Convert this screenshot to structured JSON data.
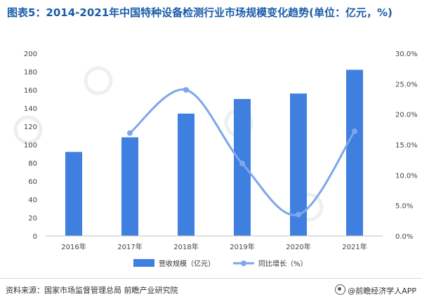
{
  "header": {
    "title": "图表5：2014-2021年中国特种设备检测行业市场规模变化趋势(单位：亿元，%)"
  },
  "chart_data": {
    "type": "bar",
    "categories": [
      "2016年",
      "2017年",
      "2018年",
      "2019年",
      "2020年",
      "2021年"
    ],
    "series": [
      {
        "name": "营收规模（亿元）",
        "type": "bar",
        "axis": "left",
        "color": "#3f7fe0",
        "values": [
          92,
          108,
          134,
          150,
          156,
          182
        ]
      },
      {
        "name": "同比增长（%）",
        "type": "line",
        "axis": "right",
        "color": "#7da7ea",
        "values": [
          null,
          16.9,
          24.0,
          11.9,
          3.5,
          17.2
        ]
      }
    ],
    "y_left": {
      "min": 0,
      "max": 200,
      "step": 20,
      "ticks": [
        "0",
        "20",
        "40",
        "60",
        "80",
        "100",
        "120",
        "140",
        "160",
        "180",
        "200"
      ]
    },
    "y_right": {
      "min": 0,
      "max": 30,
      "step": 5,
      "ticks": [
        "0.0%",
        "5.0%",
        "10.0%",
        "15.0%",
        "20.0%",
        "25.0%",
        "30.0%"
      ]
    },
    "legend_position": "bottom"
  },
  "footer": {
    "source": "资料来源：国家市场监督管理总局 前瞻产业研究院",
    "brand": "@前瞻经济学人APP"
  }
}
